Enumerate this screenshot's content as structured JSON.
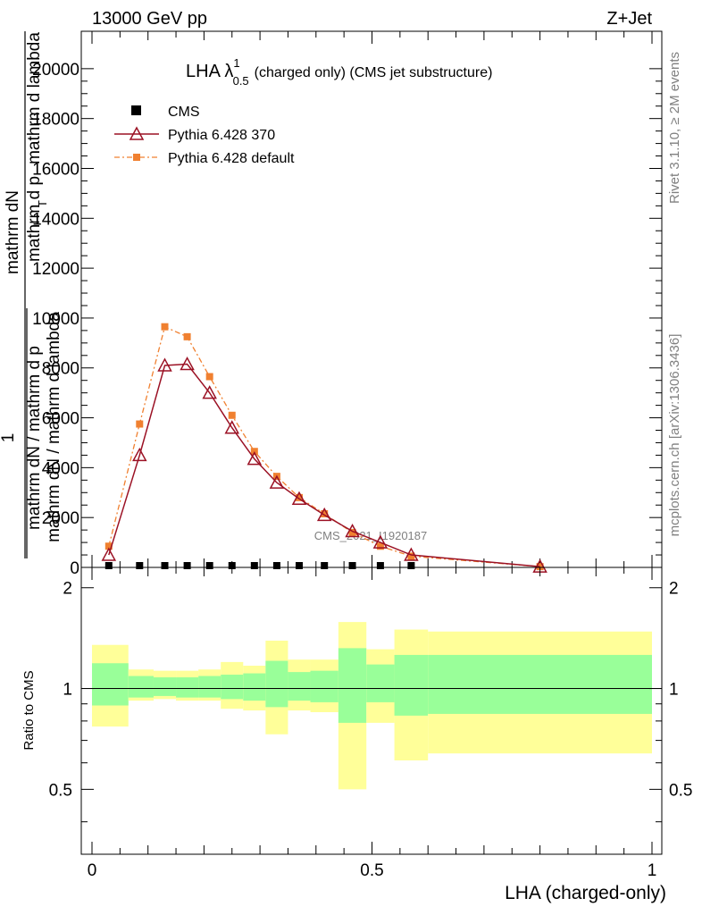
{
  "chart_data": [
    {
      "type": "line",
      "header_left": "13000 GeV pp",
      "header_right": "Z+Jet",
      "title_main": "LHA λ",
      "title_sup": "1",
      "title_sub": "0.5",
      "title_rest": "(charged only) (CMS jet substructure)",
      "ylabel_top": "mathrm dN",
      "ylabel_top2": "mathrm d p",
      "ylabel_top2_sub": "T",
      "ylabel_top3": "mathrm d lambda",
      "ylabel_one": "1",
      "ylabel_bottom": "mathrm dN / mathrm d p",
      "ylabel_bottom2": "mathrm dN / mathrm d lambda",
      "side_label_top": "Rivet 3.1.10, ≥ 2M events",
      "side_label_bottom": "mcplots.cern.ch [arXiv:1306.3436]",
      "watermark": "CMS_2021_I1920187",
      "xlim": [
        -0.02,
        1.0
      ],
      "ylim": [
        0,
        21500
      ],
      "yticks": [
        0,
        2000,
        4000,
        6000,
        8000,
        10000,
        12000,
        14000,
        16000,
        18000,
        20000
      ],
      "ytick_labels": [
        "0",
        "2000",
        "4000",
        "6000",
        "8000",
        "10000",
        "12000",
        "14000",
        "16000",
        "18000",
        "20000"
      ],
      "legend": {
        "position": "top-left",
        "entries": [
          "CMS",
          "Pythia 6.428 370",
          "Pythia 6.428 default"
        ]
      },
      "series": [
        {
          "name": "CMS",
          "color": "#000000",
          "marker": "square",
          "x": [
            0.03,
            0.085,
            0.13,
            0.17,
            0.21,
            0.25,
            0.29,
            0.33,
            0.37,
            0.415,
            0.465,
            0.515,
            0.57
          ],
          "y": [
            0,
            0,
            0,
            0,
            0,
            0,
            0,
            0,
            0,
            0,
            0,
            0,
            0
          ]
        },
        {
          "name": "Pythia 6.428 370",
          "color": "#9b1124",
          "marker": "triangle-open",
          "x": [
            0.03,
            0.085,
            0.13,
            0.17,
            0.21,
            0.25,
            0.29,
            0.33,
            0.37,
            0.415,
            0.465,
            0.515,
            0.57,
            0.8
          ],
          "y": [
            500,
            4500,
            8100,
            8150,
            7000,
            5600,
            4350,
            3400,
            2750,
            2100,
            1450,
            1000,
            500,
            30
          ]
        },
        {
          "name": "Pythia 6.428 default",
          "color": "#f08030",
          "marker": "square-small",
          "x": [
            0.03,
            0.085,
            0.13,
            0.17,
            0.21,
            0.25,
            0.29,
            0.33,
            0.37,
            0.415,
            0.465,
            0.515,
            0.57,
            0.8
          ],
          "y": [
            850,
            5750,
            9650,
            9250,
            7650,
            6100,
            4650,
            3650,
            2800,
            2150,
            1400,
            850,
            450,
            30
          ]
        }
      ]
    },
    {
      "type": "area",
      "ylabel": "Ratio to CMS",
      "xlabel": "LHA (charged-only)",
      "xlim": [
        -0.02,
        1.0
      ],
      "ylim": [
        0.32,
        2.3
      ],
      "yticks": [
        0.5,
        1,
        2
      ],
      "ytick_labels": [
        "0.5",
        "1",
        "2"
      ],
      "xticks": [
        0,
        0.5,
        1
      ],
      "xtick_labels": [
        "0",
        "0.5",
        "1"
      ],
      "reference_line": 1,
      "bands": {
        "edges": [
          0.0,
          0.065,
          0.11,
          0.15,
          0.19,
          0.23,
          0.27,
          0.31,
          0.35,
          0.39,
          0.44,
          0.49,
          0.54,
          0.6,
          1.0
        ],
        "inner_color": "#99ff99",
        "outer_color": "#ffff99",
        "inner_lo": [
          0.89,
          0.94,
          0.95,
          0.94,
          0.94,
          0.93,
          0.92,
          0.88,
          0.92,
          0.91,
          0.79,
          0.91,
          0.83,
          0.84
        ],
        "inner_hi": [
          1.19,
          1.09,
          1.08,
          1.08,
          1.09,
          1.1,
          1.11,
          1.21,
          1.12,
          1.13,
          1.32,
          1.18,
          1.26,
          1.26
        ],
        "outer_lo": [
          0.77,
          0.92,
          0.93,
          0.92,
          0.92,
          0.87,
          0.86,
          0.73,
          0.86,
          0.85,
          0.5,
          0.79,
          0.61,
          0.64
        ],
        "outer_hi": [
          1.35,
          1.14,
          1.13,
          1.13,
          1.14,
          1.2,
          1.17,
          1.39,
          1.22,
          1.22,
          1.58,
          1.31,
          1.5,
          1.48
        ]
      }
    }
  ]
}
